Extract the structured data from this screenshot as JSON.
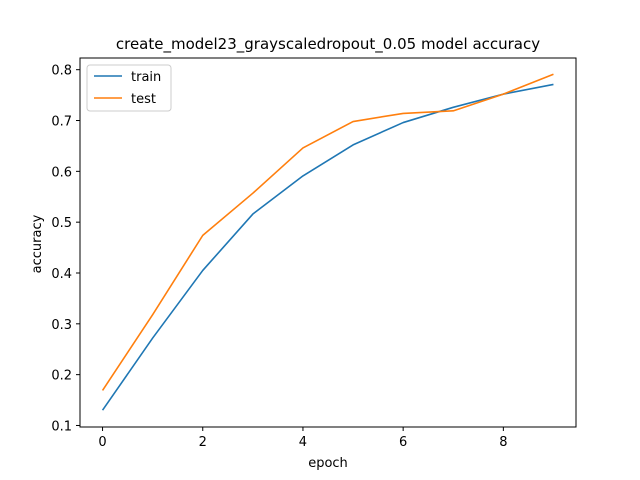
{
  "chart_data": {
    "type": "line",
    "title": "create_model23_grayscaledropout_0.05 model accuracy",
    "xlabel": "epoch",
    "ylabel": "accuracy",
    "x": [
      0,
      1,
      2,
      3,
      4,
      5,
      6,
      7,
      8,
      9
    ],
    "xlim": [
      -0.45,
      9.45
    ],
    "ylim": [
      0.097,
      0.823
    ],
    "xticks": [
      0,
      2,
      4,
      6,
      8
    ],
    "yticks": [
      0.1,
      0.2,
      0.3,
      0.4,
      0.5,
      0.6,
      0.7,
      0.8
    ],
    "grid": false,
    "legend_position": "top-left",
    "series": [
      {
        "name": "train",
        "color": "#1f77b4",
        "values": [
          0.13,
          0.272,
          0.405,
          0.516,
          0.591,
          0.652,
          0.696,
          0.726,
          0.752,
          0.771
        ]
      },
      {
        "name": "test",
        "color": "#ff7f0e",
        "values": [
          0.169,
          0.318,
          0.474,
          0.557,
          0.646,
          0.698,
          0.714,
          0.719,
          0.752,
          0.791
        ]
      }
    ]
  }
}
